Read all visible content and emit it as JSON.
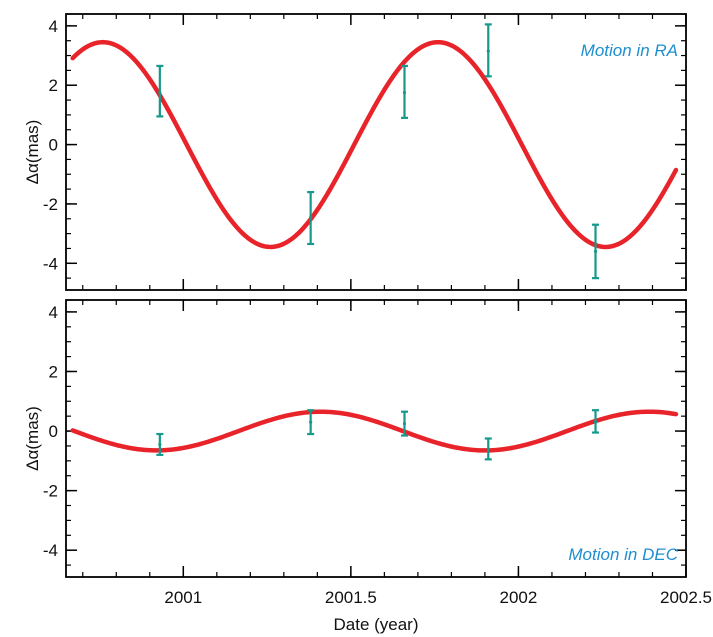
{
  "chart_data": [
    {
      "type": "line",
      "annotation": "Motion in RA",
      "ylabel": "Δα(mas)",
      "xlabel": "",
      "xlim": [
        2000.65,
        2002.5
      ],
      "ylim": [
        -4.9,
        4.4
      ],
      "xticks": [
        2001,
        2001.5,
        2002,
        2002.5
      ],
      "yticks": [
        -4,
        -2,
        0,
        2,
        4
      ],
      "xtick_labels_shown": false,
      "model": {
        "amplitude": 3.45,
        "period": 1.0,
        "peak_at": 2000.76,
        "x_start": 2000.67,
        "x_end": 2002.47
      },
      "points": [
        {
          "x": 2000.93,
          "y": 1.75,
          "ylow": 0.95,
          "yhigh": 2.65
        },
        {
          "x": 2001.38,
          "y": -2.45,
          "ylow": -3.35,
          "yhigh": -1.6
        },
        {
          "x": 2001.66,
          "y": 1.75,
          "ylow": 0.9,
          "yhigh": 2.65
        },
        {
          "x": 2001.91,
          "y": 3.15,
          "ylow": 2.3,
          "yhigh": 4.05
        },
        {
          "x": 2002.23,
          "y": -3.6,
          "ylow": -4.5,
          "yhigh": -2.7
        }
      ]
    },
    {
      "type": "line",
      "annotation": "Motion in DEC",
      "ylabel": "Δα(mas)",
      "xlabel": "Date (year)",
      "xlim": [
        2000.65,
        2002.5
      ],
      "ylim": [
        -4.9,
        4.4
      ],
      "xticks": [
        2001,
        2001.5,
        2002,
        2002.5
      ],
      "yticks": [
        -4,
        -2,
        0,
        2,
        4
      ],
      "xtick_labels_shown": true,
      "xtick_labels": [
        "2001",
        "2001.5",
        "2002",
        "2002.5"
      ],
      "model": {
        "amplitude": 0.65,
        "period": 0.98,
        "peak_at": 2001.41,
        "x_start": 2000.67,
        "x_end": 2002.47
      },
      "points": [
        {
          "x": 2000.93,
          "y": -0.45,
          "ylow": -0.8,
          "yhigh": -0.1
        },
        {
          "x": 2001.38,
          "y": 0.3,
          "ylow": -0.1,
          "yhigh": 0.7
        },
        {
          "x": 2001.66,
          "y": 0.25,
          "ylow": -0.15,
          "yhigh": 0.65
        },
        {
          "x": 2001.91,
          "y": -0.6,
          "ylow": -0.95,
          "yhigh": -0.25
        },
        {
          "x": 2002.23,
          "y": 0.3,
          "ylow": -0.05,
          "yhigh": 0.7
        }
      ]
    }
  ],
  "colors": {
    "model_curve": "#e8242a",
    "error_bars": "#16998a",
    "annotation": "#1f8fcf",
    "axes": "#000000"
  }
}
